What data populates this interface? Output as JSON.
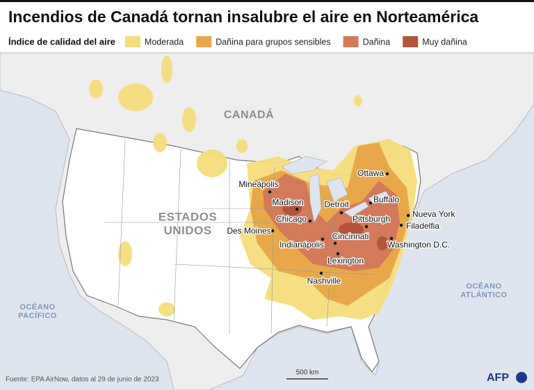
{
  "title": "Incendios de Canadá tornan insalubre el aire en Norteamérica",
  "legend": {
    "title": "Índice de calidad del aire",
    "items": [
      {
        "label": "Moderada",
        "color": "#f6dd7c"
      },
      {
        "label": "Dañina para grupos sensibles",
        "color": "#e8a84a"
      },
      {
        "label": "Dañina",
        "color": "#d27a5a"
      },
      {
        "label": "Muy dañina",
        "color": "#b3553c"
      }
    ]
  },
  "regions": [
    {
      "lines": [
        "CANADÁ"
      ]
    },
    {
      "lines": [
        "ESTADOS",
        "UNIDOS"
      ]
    }
  ],
  "oceans": [
    {
      "lines": [
        "OCÉANO",
        "PACÍFICO"
      ]
    },
    {
      "lines": [
        "OCÉANO",
        "ATLÁNTICO"
      ]
    }
  ],
  "cities": [
    "Ottawa",
    "Mineápolis",
    "Madison",
    "Detroit",
    "Buffalo",
    "Nueva York",
    "Chicago",
    "Pittsburgh",
    "Filadelfia",
    "Des Moines",
    "Indianápolis",
    "Cincinnati",
    "Washington D.C.",
    "Lexington",
    "Nashville"
  ],
  "scale": "500 km",
  "source": "Fuente: EPA AirNow, datos al 29 de junio de 2023",
  "logo": "AFP"
}
